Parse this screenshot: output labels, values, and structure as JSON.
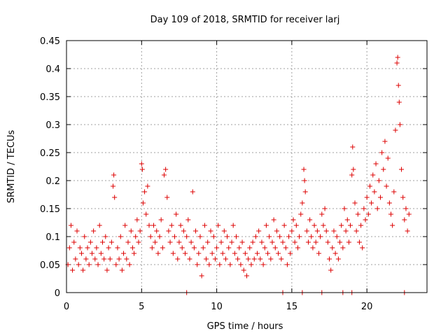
{
  "chart_data": {
    "type": "scatter",
    "title": "Day 109 of 2018, SRMTID for receiver larj",
    "xlabel": "GPS time / hours",
    "ylabel": "SRMTID / TECUs",
    "xlim": [
      0,
      24
    ],
    "ylim": [
      0,
      0.45
    ],
    "grid": true,
    "x_ticks": [
      0,
      5,
      10,
      15,
      20
    ],
    "x_tick_labels": [
      "0",
      "5",
      "10",
      "15",
      "20"
    ],
    "y_ticks": [
      0,
      0.05,
      0.1,
      0.15,
      0.2,
      0.25,
      0.3,
      0.35,
      0.4,
      0.45
    ],
    "y_tick_labels": [
      "0",
      "0.05",
      "0.1",
      "0.15",
      "0.2",
      "0.25",
      "0.3",
      "0.35",
      "0.4",
      "0.45"
    ],
    "marker": "+",
    "color": "#dd0000",
    "series": [
      {
        "name": "SRMTID",
        "points": [
          [
            0.1,
            0.05
          ],
          [
            0.2,
            0.08
          ],
          [
            0.3,
            0.12
          ],
          [
            0.4,
            0.04
          ],
          [
            0.5,
            0.09
          ],
          [
            0.6,
            0.06
          ],
          [
            0.7,
            0.11
          ],
          [
            0.8,
            0.05
          ],
          [
            0.9,
            0.08
          ],
          [
            1.0,
            0.07
          ],
          [
            1.1,
            0.04
          ],
          [
            1.2,
            0.1
          ],
          [
            1.3,
            0.06
          ],
          [
            1.4,
            0.08
          ],
          [
            1.5,
            0.05
          ],
          [
            1.6,
            0.09
          ],
          [
            1.7,
            0.07
          ],
          [
            1.8,
            0.11
          ],
          [
            1.9,
            0.06
          ],
          [
            2.0,
            0.08
          ],
          [
            2.1,
            0.05
          ],
          [
            2.2,
            0.12
          ],
          [
            2.3,
            0.07
          ],
          [
            2.4,
            0.09
          ],
          [
            2.5,
            0.06
          ],
          [
            2.6,
            0.1
          ],
          [
            2.7,
            0.04
          ],
          [
            2.8,
            0.08
          ],
          [
            2.9,
            0.06
          ],
          [
            3.0,
            0.09
          ],
          [
            3.1,
            0.19
          ],
          [
            3.15,
            0.21
          ],
          [
            3.2,
            0.17
          ],
          [
            3.3,
            0.05
          ],
          [
            3.4,
            0.08
          ],
          [
            3.5,
            0.06
          ],
          [
            3.6,
            0.1
          ],
          [
            3.7,
            0.04
          ],
          [
            3.8,
            0.07
          ],
          [
            3.9,
            0.12
          ],
          [
            4.0,
            0.06
          ],
          [
            4.1,
            0.09
          ],
          [
            4.2,
            0.05
          ],
          [
            4.3,
            0.11
          ],
          [
            4.4,
            0.08
          ],
          [
            4.5,
            0.07
          ],
          [
            4.6,
            0.1
          ],
          [
            4.7,
            0.13
          ],
          [
            4.8,
            0.09
          ],
          [
            4.9,
            0.11
          ],
          [
            5.0,
            0.23
          ],
          [
            5.05,
            0.22
          ],
          [
            5.1,
            0.16
          ],
          [
            5.2,
            0.18
          ],
          [
            5.3,
            0.14
          ],
          [
            5.4,
            0.19
          ],
          [
            5.5,
            0.12
          ],
          [
            5.6,
            0.1
          ],
          [
            5.7,
            0.08
          ],
          [
            5.8,
            0.12
          ],
          [
            5.9,
            0.09
          ],
          [
            6.0,
            0.11
          ],
          [
            6.1,
            0.07
          ],
          [
            6.2,
            0.1
          ],
          [
            6.3,
            0.13
          ],
          [
            6.4,
            0.08
          ],
          [
            6.5,
            0.21
          ],
          [
            6.6,
            0.22
          ],
          [
            6.7,
            0.17
          ],
          [
            6.8,
            0.11
          ],
          [
            6.9,
            0.09
          ],
          [
            7.0,
            0.12
          ],
          [
            7.1,
            0.07
          ],
          [
            7.2,
            0.1
          ],
          [
            7.3,
            0.14
          ],
          [
            7.4,
            0.06
          ],
          [
            7.5,
            0.09
          ],
          [
            7.6,
            0.12
          ],
          [
            7.7,
            0.08
          ],
          [
            7.8,
            0.11
          ],
          [
            7.9,
            0.07
          ],
          [
            8.0,
            0.1
          ],
          [
            8.1,
            0.13
          ],
          [
            8.2,
            0.06
          ],
          [
            8.3,
            0.09
          ],
          [
            8.4,
            0.18
          ],
          [
            8.5,
            0.08
          ],
          [
            8.6,
            0.11
          ],
          [
            8.7,
            0.05
          ],
          [
            8.8,
            0.07
          ],
          [
            8.9,
            0.1
          ],
          [
            9.0,
            0.03
          ],
          [
            9.1,
            0.08
          ],
          [
            9.2,
            0.12
          ],
          [
            9.3,
            0.06
          ],
          [
            9.4,
            0.09
          ],
          [
            9.5,
            0.05
          ],
          [
            9.6,
            0.11
          ],
          [
            9.7,
            0.07
          ],
          [
            9.8,
            0.1
          ],
          [
            9.9,
            0.06
          ],
          [
            10.0,
            0.08
          ],
          [
            10.1,
            0.12
          ],
          [
            10.2,
            0.05
          ],
          [
            10.3,
            0.09
          ],
          [
            10.4,
            0.07
          ],
          [
            10.5,
            0.11
          ],
          [
            10.6,
            0.06
          ],
          [
            10.7,
            0.1
          ],
          [
            10.8,
            0.08
          ],
          [
            10.9,
            0.05
          ],
          [
            11.0,
            0.09
          ],
          [
            11.1,
            0.12
          ],
          [
            11.2,
            0.07
          ],
          [
            11.3,
            0.1
          ],
          [
            11.4,
            0.06
          ],
          [
            11.5,
            0.08
          ],
          [
            11.6,
            0.05
          ],
          [
            11.7,
            0.09
          ],
          [
            11.8,
            0.04
          ],
          [
            11.9,
            0.07
          ],
          [
            12.0,
            0.03
          ],
          [
            12.1,
            0.06
          ],
          [
            12.2,
            0.08
          ],
          [
            12.3,
            0.05
          ],
          [
            12.4,
            0.09
          ],
          [
            12.5,
            0.06
          ],
          [
            12.6,
            0.1
          ],
          [
            12.7,
            0.07
          ],
          [
            12.8,
            0.11
          ],
          [
            12.9,
            0.06
          ],
          [
            13.0,
            0.09
          ],
          [
            13.1,
            0.05
          ],
          [
            13.2,
            0.08
          ],
          [
            13.3,
            0.12
          ],
          [
            13.4,
            0.07
          ],
          [
            13.5,
            0.1
          ],
          [
            13.6,
            0.06
          ],
          [
            13.7,
            0.09
          ],
          [
            13.8,
            0.13
          ],
          [
            13.9,
            0.08
          ],
          [
            14.0,
            0.11
          ],
          [
            14.1,
            0.07
          ],
          [
            14.2,
            0.1
          ],
          [
            14.3,
            0.06
          ],
          [
            14.4,
            0.09
          ],
          [
            14.5,
            0.12
          ],
          [
            14.6,
            0.08
          ],
          [
            14.7,
            0.05
          ],
          [
            14.8,
            0.1
          ],
          [
            14.9,
            0.07
          ],
          [
            15.0,
            0.11
          ],
          [
            15.1,
            0.13
          ],
          [
            15.2,
            0.09
          ],
          [
            15.3,
            0.12
          ],
          [
            15.4,
            0.08
          ],
          [
            15.5,
            0.1
          ],
          [
            15.6,
            0.14
          ],
          [
            15.7,
            0.16
          ],
          [
            15.8,
            0.22
          ],
          [
            15.85,
            0.2
          ],
          [
            15.9,
            0.18
          ],
          [
            16.0,
            0.11
          ],
          [
            16.1,
            0.09
          ],
          [
            16.2,
            0.13
          ],
          [
            16.3,
            0.1
          ],
          [
            16.4,
            0.08
          ],
          [
            16.5,
            0.12
          ],
          [
            16.6,
            0.09
          ],
          [
            16.7,
            0.11
          ],
          [
            16.8,
            0.07
          ],
          [
            16.9,
            0.1
          ],
          [
            17.0,
            0.14
          ],
          [
            17.1,
            0.12
          ],
          [
            17.2,
            0.15
          ],
          [
            17.3,
            0.11
          ],
          [
            17.4,
            0.09
          ],
          [
            17.5,
            0.06
          ],
          [
            17.6,
            0.04
          ],
          [
            17.7,
            0.08
          ],
          [
            17.8,
            0.11
          ],
          [
            17.9,
            0.07
          ],
          [
            18.0,
            0.1
          ],
          [
            18.1,
            0.06
          ],
          [
            18.2,
            0.09
          ],
          [
            18.3,
            0.12
          ],
          [
            18.4,
            0.08
          ],
          [
            18.5,
            0.15
          ],
          [
            18.6,
            0.11
          ],
          [
            18.7,
            0.13
          ],
          [
            18.8,
            0.09
          ],
          [
            18.9,
            0.12
          ],
          [
            19.0,
            0.21
          ],
          [
            19.05,
            0.26
          ],
          [
            19.1,
            0.22
          ],
          [
            19.2,
            0.16
          ],
          [
            19.3,
            0.11
          ],
          [
            19.4,
            0.14
          ],
          [
            19.5,
            0.09
          ],
          [
            19.6,
            0.12
          ],
          [
            19.7,
            0.08
          ],
          [
            19.8,
            0.15
          ],
          [
            19.9,
            0.13
          ],
          [
            20.0,
            0.17
          ],
          [
            20.1,
            0.14
          ],
          [
            20.2,
            0.19
          ],
          [
            20.3,
            0.16
          ],
          [
            20.4,
            0.21
          ],
          [
            20.5,
            0.18
          ],
          [
            20.6,
            0.23
          ],
          [
            20.7,
            0.15
          ],
          [
            20.8,
            0.2
          ],
          [
            20.9,
            0.17
          ],
          [
            21.0,
            0.25
          ],
          [
            21.1,
            0.22
          ],
          [
            21.2,
            0.27
          ],
          [
            21.3,
            0.19
          ],
          [
            21.4,
            0.24
          ],
          [
            21.5,
            0.16
          ],
          [
            21.6,
            0.14
          ],
          [
            21.7,
            0.12
          ],
          [
            21.8,
            0.18
          ],
          [
            21.9,
            0.29
          ],
          [
            22.0,
            0.41
          ],
          [
            22.05,
            0.42
          ],
          [
            22.1,
            0.37
          ],
          [
            22.15,
            0.34
          ],
          [
            22.2,
            0.3
          ],
          [
            22.3,
            0.22
          ],
          [
            22.4,
            0.17
          ],
          [
            22.5,
            0.13
          ],
          [
            22.6,
            0.15
          ],
          [
            22.7,
            0.11
          ],
          [
            22.8,
            0.14
          ]
        ]
      },
      {
        "name": "zero markers",
        "points": [
          [
            8.0,
            0
          ],
          [
            14.4,
            0
          ],
          [
            15.7,
            0
          ],
          [
            17.0,
            0
          ],
          [
            18.4,
            0
          ],
          [
            19.0,
            0
          ],
          [
            22.5,
            0
          ]
        ]
      }
    ]
  }
}
